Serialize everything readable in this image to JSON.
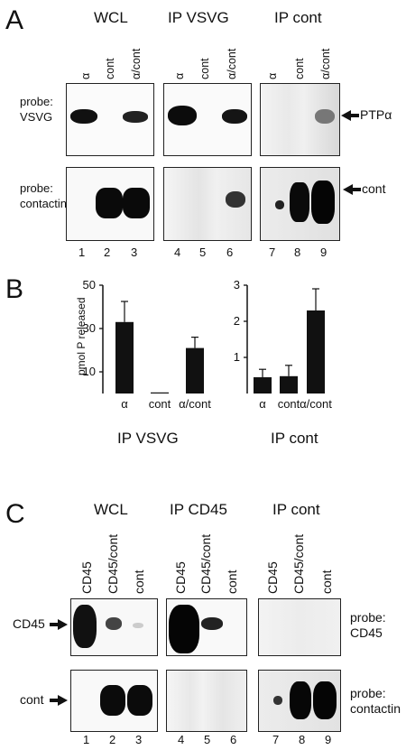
{
  "panelA": {
    "letter": "A",
    "groups": [
      "WCL",
      "IP VSVG",
      "IP cont"
    ],
    "lane_labels": [
      "α",
      "cont",
      "α/cont",
      "α",
      "cont",
      "α/cont",
      "α",
      "cont",
      "α/cont"
    ],
    "probe1": [
      "probe:",
      "VSVG"
    ],
    "probe2": [
      "probe:",
      "contactin"
    ],
    "arrow1": "PTPα",
    "arrow2": "cont",
    "lane_numbers": [
      "1",
      "2",
      "3",
      "4",
      "5",
      "6",
      "7",
      "8",
      "9"
    ]
  },
  "panelB": {
    "letter": "B",
    "ylabel": "pmol P released",
    "left_caption": "IP VSVG",
    "right_caption": "IP cont"
  },
  "panelC": {
    "letter": "C",
    "groups": [
      "WCL",
      "IP CD45",
      "IP cont"
    ],
    "lane_labels": [
      "CD45",
      "CD45/cont",
      "cont",
      "CD45",
      "CD45/cont",
      "cont",
      "CD45",
      "CD45/cont",
      "cont"
    ],
    "arrow1": "CD45",
    "arrow2": "cont",
    "probe1": [
      "probe:",
      "CD45"
    ],
    "probe2": [
      "probe:",
      "contactin"
    ],
    "lane_numbers": [
      "1",
      "2",
      "3",
      "4",
      "5",
      "6",
      "7",
      "8",
      "9"
    ]
  },
  "chart_data": [
    {
      "type": "bar",
      "categories": [
        "α",
        "cont",
        "α/cont"
      ],
      "values": [
        33,
        0.5,
        21
      ],
      "errors": [
        9.5,
        0,
        5
      ],
      "ylabel": "pmol P released",
      "yticks": [
        10,
        30,
        50
      ],
      "ylim": [
        0,
        50
      ],
      "caption": "IP VSVG"
    },
    {
      "type": "bar",
      "categories": [
        "α",
        "cont",
        "α/cont"
      ],
      "values": [
        0.45,
        0.48,
        2.3
      ],
      "errors": [
        0.22,
        0.3,
        0.6
      ],
      "yticks": [
        1,
        2,
        3
      ],
      "ylim": [
        0,
        3
      ],
      "caption": "IP cont"
    }
  ]
}
